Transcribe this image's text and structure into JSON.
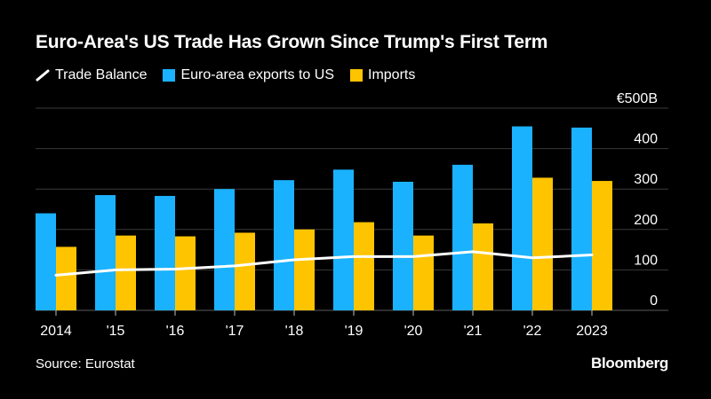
{
  "colors": {
    "background": "#000000",
    "exports": "#1ab2ff",
    "imports": "#ffc400",
    "balance": "#ffffff",
    "grid": "#3a3a3a",
    "text": "#ffffff"
  },
  "legend": {
    "balance_label": "Trade Balance",
    "exports_label": "Euro-area exports to US",
    "imports_label": "Imports"
  },
  "footer": {
    "source": "Source: Eurostat",
    "brand": "Bloomberg"
  },
  "chart_data": {
    "type": "bar",
    "title": "Euro-Area's US Trade Has Grown Since Trump's First Term",
    "categories": [
      "2014",
      "'15",
      "'16",
      "'17",
      "'18",
      "'19",
      "'20",
      "'21",
      "'22",
      "2023"
    ],
    "series": [
      {
        "name": "Euro-area exports to US",
        "kind": "bar",
        "values": [
          240,
          285,
          283,
          300,
          322,
          348,
          318,
          360,
          455,
          452
        ]
      },
      {
        "name": "Imports",
        "kind": "bar",
        "values": [
          157,
          185,
          183,
          192,
          200,
          218,
          185,
          215,
          328,
          320
        ]
      },
      {
        "name": "Trade Balance",
        "kind": "line",
        "values": [
          87,
          100,
          102,
          110,
          125,
          133,
          133,
          145,
          130,
          137
        ]
      }
    ],
    "y_ticks": [
      {
        "value": 0,
        "label": "0"
      },
      {
        "value": 100,
        "label": "100"
      },
      {
        "value": 200,
        "label": "200"
      },
      {
        "value": 300,
        "label": "300"
      },
      {
        "value": 400,
        "label": "400"
      },
      {
        "value": 500,
        "label": "€500B"
      }
    ],
    "ylim": [
      0,
      500
    ],
    "ylabel": "",
    "xlabel": "",
    "grid": true,
    "axis_position": "right"
  }
}
